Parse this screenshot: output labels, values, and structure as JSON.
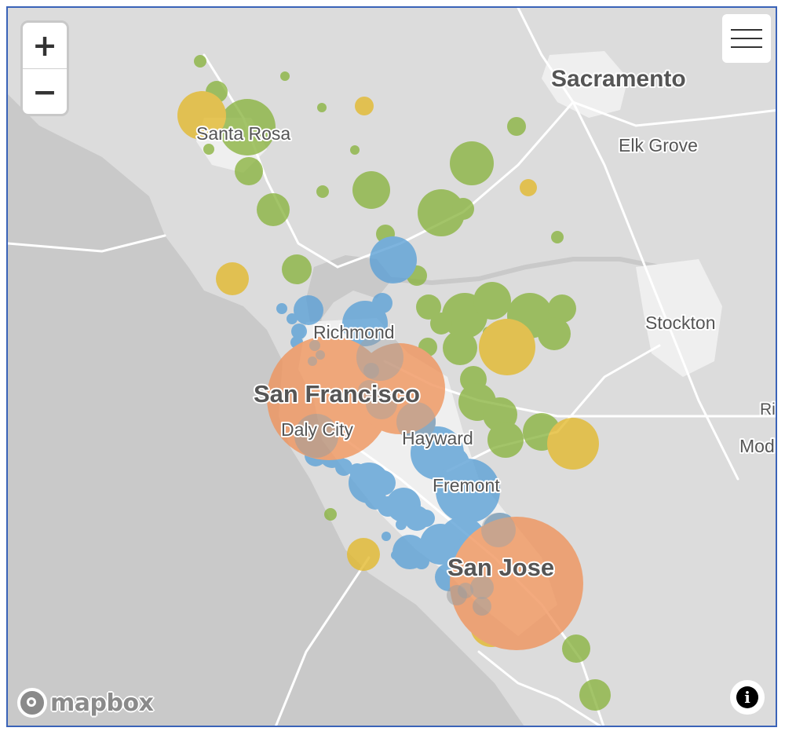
{
  "map": {
    "colors": {
      "land": "#dcdcdc",
      "water": "#c9c9c9",
      "urban": "#f2f2f2",
      "road": "#ffffff",
      "green": "#8ab43f",
      "yellow": "#e3b92b",
      "blue": "#5aa0d6",
      "orange": "#f0935a",
      "label": "#555555"
    },
    "labels": [
      {
        "text": "Sacramento"
      },
      {
        "text": "Elk Grove"
      },
      {
        "text": "Santa Rosa"
      },
      {
        "text": "Stockton"
      },
      {
        "text": "Richmond"
      },
      {
        "text": "San Francisco"
      },
      {
        "text": "Daly City"
      },
      {
        "text": "Hayward"
      },
      {
        "text": "Fremont"
      },
      {
        "text": "San Jose"
      },
      {
        "text": "Riv"
      },
      {
        "text": "Mod"
      }
    ]
  },
  "controls": {
    "zoom_in": "+",
    "zoom_out": "−",
    "info": "i"
  },
  "attribution": {
    "logo_text": "mapbox"
  }
}
